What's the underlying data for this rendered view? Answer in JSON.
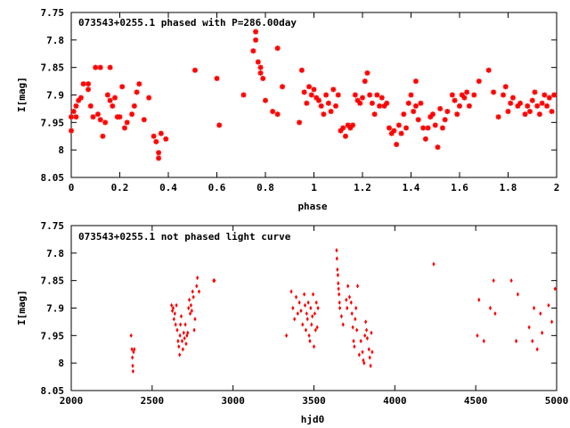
{
  "colors": {
    "marker": "#ff0000",
    "axis": "#000000",
    "background": "#ffffff"
  },
  "chart_data": [
    {
      "type": "scatter",
      "title": "073543+0255.1 phased with P=286.00day",
      "xlabel": "phase",
      "ylabel": "I[mag]",
      "xlim": [
        0,
        2
      ],
      "ylim": [
        7.75,
        8.05
      ],
      "y_inverted": true,
      "grid": false,
      "marker": "star",
      "xticks": [
        0,
        0.2,
        0.4,
        0.6,
        0.8,
        1,
        1.2,
        1.4,
        1.6,
        1.8,
        2
      ],
      "xtick_labels": [
        "0",
        "0.2",
        "0.4",
        "0.6",
        "0.8",
        "1",
        "1.2",
        "1.4",
        "1.6",
        "1.8",
        "2"
      ],
      "yticks": [
        7.75,
        7.8,
        7.85,
        7.9,
        7.95,
        8,
        8.05
      ],
      "ytick_labels": [
        "7.75",
        "7.8",
        "7.85",
        "7.9",
        "7.95",
        "8",
        "8.05"
      ],
      "points": [
        [
          0.0,
          7.94
        ],
        [
          0.0,
          7.965
        ],
        [
          0.01,
          7.93
        ],
        [
          0.02,
          7.92
        ],
        [
          0.02,
          7.94
        ],
        [
          0.03,
          7.91
        ],
        [
          0.04,
          7.905
        ],
        [
          0.05,
          7.88
        ],
        [
          0.07,
          7.89
        ],
        [
          0.07,
          7.88
        ],
        [
          0.08,
          7.92
        ],
        [
          0.09,
          7.94
        ],
        [
          0.1,
          7.85
        ],
        [
          0.11,
          7.935
        ],
        [
          0.12,
          7.945
        ],
        [
          0.12,
          7.85
        ],
        [
          0.13,
          7.975
        ],
        [
          0.14,
          7.95
        ],
        [
          0.15,
          7.9
        ],
        [
          0.16,
          7.85
        ],
        [
          0.16,
          7.91
        ],
        [
          0.17,
          7.92
        ],
        [
          0.18,
          7.905
        ],
        [
          0.19,
          7.94
        ],
        [
          0.2,
          7.94
        ],
        [
          0.21,
          7.885
        ],
        [
          0.22,
          7.96
        ],
        [
          0.23,
          7.95
        ],
        [
          0.25,
          7.935
        ],
        [
          0.26,
          7.92
        ],
        [
          0.27,
          7.895
        ],
        [
          0.28,
          7.88
        ],
        [
          0.3,
          7.945
        ],
        [
          0.32,
          7.905
        ],
        [
          0.34,
          7.975
        ],
        [
          0.35,
          7.985
        ],
        [
          0.36,
          8.005
        ],
        [
          0.36,
          8.015
        ],
        [
          0.37,
          7.97
        ],
        [
          0.39,
          7.98
        ],
        [
          0.51,
          7.855
        ],
        [
          0.6,
          7.87
        ],
        [
          0.61,
          7.955
        ],
        [
          0.71,
          7.9
        ],
        [
          0.75,
          7.82
        ],
        [
          0.76,
          7.785
        ],
        [
          0.76,
          7.8
        ],
        [
          0.77,
          7.84
        ],
        [
          0.78,
          7.85
        ],
        [
          0.78,
          7.86
        ],
        [
          0.79,
          7.87
        ],
        [
          0.8,
          7.91
        ],
        [
          0.83,
          7.93
        ],
        [
          0.85,
          7.935
        ],
        [
          0.85,
          7.815
        ],
        [
          0.87,
          7.885
        ],
        [
          0.94,
          7.95
        ],
        [
          0.95,
          7.855
        ],
        [
          0.96,
          7.895
        ],
        [
          0.97,
          7.915
        ],
        [
          0.98,
          7.885
        ],
        [
          0.99,
          7.9
        ],
        [
          1.0,
          7.89
        ],
        [
          1.01,
          7.905
        ],
        [
          1.02,
          7.91
        ],
        [
          1.03,
          7.92
        ],
        [
          1.04,
          7.935
        ],
        [
          1.05,
          7.9
        ],
        [
          1.06,
          7.915
        ],
        [
          1.07,
          7.93
        ],
        [
          1.08,
          7.89
        ],
        [
          1.09,
          7.92
        ],
        [
          1.1,
          7.9
        ],
        [
          1.11,
          7.965
        ],
        [
          1.12,
          7.96
        ],
        [
          1.13,
          7.975
        ],
        [
          1.14,
          7.955
        ],
        [
          1.15,
          7.96
        ],
        [
          1.16,
          7.955
        ],
        [
          1.17,
          7.9
        ],
        [
          1.18,
          7.91
        ],
        [
          1.19,
          7.915
        ],
        [
          1.2,
          7.905
        ],
        [
          1.21,
          7.875
        ],
        [
          1.22,
          7.86
        ],
        [
          1.23,
          7.9
        ],
        [
          1.24,
          7.915
        ],
        [
          1.25,
          7.935
        ],
        [
          1.26,
          7.9
        ],
        [
          1.27,
          7.92
        ],
        [
          1.28,
          7.905
        ],
        [
          1.29,
          7.92
        ],
        [
          1.3,
          7.915
        ],
        [
          1.31,
          7.96
        ],
        [
          1.32,
          7.97
        ],
        [
          1.33,
          7.965
        ],
        [
          1.34,
          7.99
        ],
        [
          1.35,
          7.955
        ],
        [
          1.36,
          7.97
        ],
        [
          1.37,
          7.935
        ],
        [
          1.38,
          7.96
        ],
        [
          1.39,
          7.915
        ],
        [
          1.4,
          7.9
        ],
        [
          1.41,
          7.93
        ],
        [
          1.42,
          7.875
        ],
        [
          1.42,
          7.92
        ],
        [
          1.43,
          7.945
        ],
        [
          1.44,
          7.915
        ],
        [
          1.45,
          7.96
        ],
        [
          1.46,
          7.98
        ],
        [
          1.47,
          7.96
        ],
        [
          1.48,
          7.94
        ],
        [
          1.49,
          7.935
        ],
        [
          1.5,
          7.955
        ],
        [
          1.51,
          7.995
        ],
        [
          1.52,
          7.925
        ],
        [
          1.53,
          7.96
        ],
        [
          1.54,
          7.945
        ],
        [
          1.55,
          7.93
        ],
        [
          1.57,
          7.9
        ],
        [
          1.58,
          7.91
        ],
        [
          1.59,
          7.935
        ],
        [
          1.6,
          7.92
        ],
        [
          1.61,
          7.9
        ],
        [
          1.62,
          7.905
        ],
        [
          1.63,
          7.895
        ],
        [
          1.64,
          7.92
        ],
        [
          1.66,
          7.9
        ],
        [
          1.68,
          7.875
        ],
        [
          1.72,
          7.855
        ],
        [
          1.74,
          7.895
        ],
        [
          1.76,
          7.94
        ],
        [
          1.78,
          7.9
        ],
        [
          1.79,
          7.885
        ],
        [
          1.8,
          7.93
        ],
        [
          1.81,
          7.915
        ],
        [
          1.82,
          7.905
        ],
        [
          1.84,
          7.92
        ],
        [
          1.85,
          7.915
        ],
        [
          1.87,
          7.935
        ],
        [
          1.88,
          7.92
        ],
        [
          1.89,
          7.93
        ],
        [
          1.9,
          7.91
        ],
        [
          1.91,
          7.895
        ],
        [
          1.92,
          7.92
        ],
        [
          1.93,
          7.935
        ],
        [
          1.94,
          7.915
        ],
        [
          1.95,
          7.9
        ],
        [
          1.96,
          7.92
        ],
        [
          1.97,
          7.905
        ],
        [
          1.98,
          7.93
        ],
        [
          1.99,
          7.9
        ]
      ]
    },
    {
      "type": "scatter",
      "title": "073543+0255.1 not phased light curve",
      "xlabel": "hjd0",
      "ylabel": "I[mag]",
      "xlim": [
        2000,
        5000
      ],
      "ylim": [
        7.75,
        8.05
      ],
      "y_inverted": true,
      "grid": false,
      "marker": "diamond",
      "xticks": [
        2000,
        2500,
        3000,
        3500,
        4000,
        4500,
        5000
      ],
      "xtick_labels": [
        "2000",
        "2500",
        "3000",
        "3500",
        "4000",
        "4500",
        "5000"
      ],
      "yticks": [
        7.75,
        7.8,
        7.85,
        7.9,
        7.95,
        8,
        8.05
      ],
      "ytick_labels": [
        "7.75",
        "7.8",
        "7.85",
        "7.9",
        "7.95",
        "8",
        "8.05"
      ],
      "points": [
        [
          2370,
          7.95
        ],
        [
          2375,
          7.975
        ],
        [
          2378,
          7.99
        ],
        [
          2380,
          8.005
        ],
        [
          2382,
          8.015
        ],
        [
          2385,
          7.98
        ],
        [
          2390,
          7.975
        ],
        [
          2620,
          7.895
        ],
        [
          2625,
          7.905
        ],
        [
          2630,
          7.9
        ],
        [
          2635,
          7.92
        ],
        [
          2640,
          7.91
        ],
        [
          2645,
          7.93
        ],
        [
          2650,
          7.895
        ],
        [
          2655,
          7.94
        ],
        [
          2660,
          7.96
        ],
        [
          2665,
          7.97
        ],
        [
          2670,
          7.985
        ],
        [
          2672,
          7.95
        ],
        [
          2675,
          7.93
        ],
        [
          2680,
          7.915
        ],
        [
          2685,
          7.96
        ],
        [
          2690,
          7.975
        ],
        [
          2695,
          7.945
        ],
        [
          2700,
          7.955
        ],
        [
          2705,
          7.93
        ],
        [
          2710,
          7.965
        ],
        [
          2715,
          7.95
        ],
        [
          2720,
          7.945
        ],
        [
          2725,
          7.9
        ],
        [
          2730,
          7.885
        ],
        [
          2735,
          7.91
        ],
        [
          2740,
          7.895
        ],
        [
          2745,
          7.905
        ],
        [
          2750,
          7.87
        ],
        [
          2755,
          7.88
        ],
        [
          2760,
          7.94
        ],
        [
          2765,
          7.92
        ],
        [
          2775,
          7.86
        ],
        [
          2780,
          7.845
        ],
        [
          2790,
          7.87
        ],
        [
          2880,
          7.85
        ],
        [
          2885,
          7.85
        ],
        [
          3330,
          7.95
        ],
        [
          3360,
          7.87
        ],
        [
          3370,
          7.9
        ],
        [
          3380,
          7.92
        ],
        [
          3390,
          7.88
        ],
        [
          3400,
          7.91
        ],
        [
          3410,
          7.89
        ],
        [
          3420,
          7.905
        ],
        [
          3430,
          7.93
        ],
        [
          3440,
          7.875
        ],
        [
          3445,
          7.895
        ],
        [
          3450,
          7.94
        ],
        [
          3455,
          7.91
        ],
        [
          3460,
          7.92
        ],
        [
          3465,
          7.89
        ],
        [
          3470,
          7.95
        ],
        [
          3475,
          7.96
        ],
        [
          3480,
          7.9
        ],
        [
          3485,
          7.93
        ],
        [
          3490,
          7.915
        ],
        [
          3495,
          7.875
        ],
        [
          3500,
          7.97
        ],
        [
          3505,
          7.91
        ],
        [
          3510,
          7.94
        ],
        [
          3515,
          7.89
        ],
        [
          3520,
          7.935
        ],
        [
          3525,
          7.9
        ],
        [
          3640,
          7.795
        ],
        [
          3642,
          7.81
        ],
        [
          3645,
          7.83
        ],
        [
          3648,
          7.84
        ],
        [
          3650,
          7.855
        ],
        [
          3652,
          7.865
        ],
        [
          3655,
          7.875
        ],
        [
          3658,
          7.89
        ],
        [
          3660,
          7.9
        ],
        [
          3670,
          7.915
        ],
        [
          3680,
          7.93
        ],
        [
          3700,
          7.885
        ],
        [
          3705,
          7.9
        ],
        [
          3710,
          7.86
        ],
        [
          3720,
          7.88
        ],
        [
          3730,
          7.89
        ],
        [
          3735,
          7.91
        ],
        [
          3740,
          7.935
        ],
        [
          3745,
          7.96
        ],
        [
          3750,
          7.97
        ],
        [
          3755,
          7.92
        ],
        [
          3760,
          7.9
        ],
        [
          3765,
          7.94
        ],
        [
          3770,
          7.86
        ],
        [
          3780,
          7.985
        ],
        [
          3790,
          7.96
        ],
        [
          3800,
          7.98
        ],
        [
          3805,
          7.995
        ],
        [
          3810,
          8.0
        ],
        [
          3815,
          7.95
        ],
        [
          3820,
          7.925
        ],
        [
          3825,
          7.94
        ],
        [
          3830,
          7.955
        ],
        [
          3840,
          7.975
        ],
        [
          3845,
          7.99
        ],
        [
          3850,
          8.005
        ],
        [
          3855,
          7.945
        ],
        [
          3860,
          7.98
        ],
        [
          4240,
          7.82
        ],
        [
          4510,
          7.95
        ],
        [
          4520,
          7.885
        ],
        [
          4550,
          7.96
        ],
        [
          4590,
          7.9
        ],
        [
          4610,
          7.85
        ],
        [
          4620,
          7.91
        ],
        [
          4720,
          7.85
        ],
        [
          4750,
          7.96
        ],
        [
          4760,
          7.875
        ],
        [
          4830,
          7.935
        ],
        [
          4850,
          7.96
        ],
        [
          4860,
          7.9
        ],
        [
          4880,
          7.975
        ],
        [
          4900,
          7.91
        ],
        [
          4910,
          7.945
        ],
        [
          4950,
          7.895
        ],
        [
          4970,
          7.925
        ],
        [
          4990,
          7.865
        ]
      ]
    }
  ]
}
